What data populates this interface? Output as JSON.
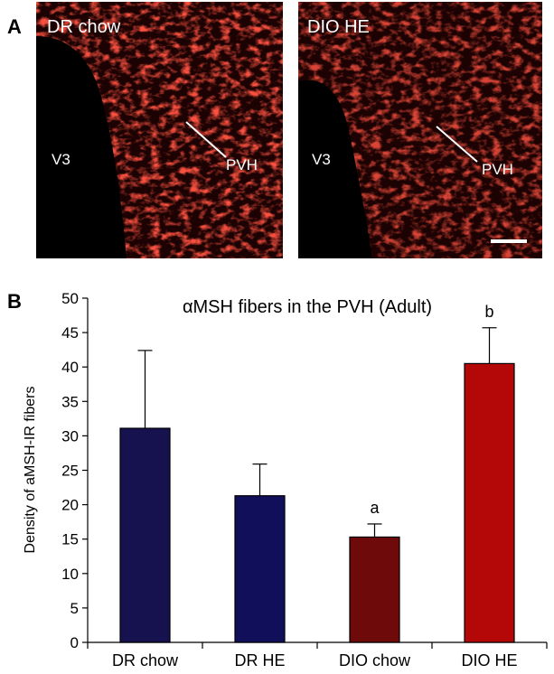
{
  "panel_a": {
    "label": "A",
    "images": [
      {
        "title": "DR chow",
        "ventricle": "V3",
        "region": "PVH"
      },
      {
        "title": "DIO HE",
        "ventricle": "V3",
        "region": "PVH"
      }
    ]
  },
  "chart_data": {
    "type": "bar",
    "panel_label": "B",
    "title": "αMSH fibers in the PVH (Adult)",
    "y_label": "Density of aMSH-IR fibers",
    "categories": [
      "DR chow",
      "DR HE",
      "DIO chow",
      "DIO HE"
    ],
    "values": [
      31.1,
      21.3,
      15.3,
      40.5
    ],
    "errors": [
      11.3,
      4.6,
      1.9,
      5.2
    ],
    "colors": [
      "#16124f",
      "#120f5a",
      "#6e0a0a",
      "#b40808"
    ],
    "annotations": [
      null,
      null,
      "a",
      "b"
    ],
    "ylim": [
      0,
      50
    ],
    "yticks": [
      0,
      5,
      10,
      15,
      20,
      25,
      30,
      35,
      40,
      45,
      50
    ]
  }
}
